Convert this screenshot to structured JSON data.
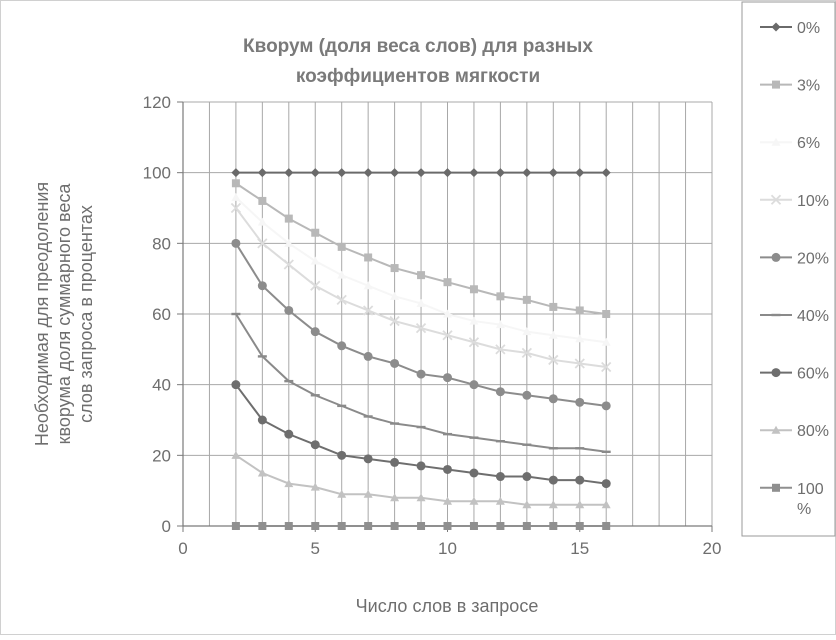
{
  "chart_data": {
    "type": "line",
    "title_lines": [
      "Кворум (доля веса слов) для разных",
      "коэффициентов мягкости"
    ],
    "xlabel": "Число слов в запросе",
    "ylabel_lines": [
      "Необходимая для преодоления",
      "кворума доля суммарного веса",
      "слов запроса в процентах"
    ],
    "xlim": [
      0,
      20
    ],
    "ylim": [
      0,
      120
    ],
    "x_ticks": [
      "0",
      "5",
      "10",
      "15",
      "20"
    ],
    "y_ticks": [
      "0",
      "20",
      "40",
      "60",
      "80",
      "100",
      "120"
    ],
    "grid": true,
    "legend_position": "right",
    "x": [
      2,
      3,
      4,
      5,
      6,
      7,
      8,
      9,
      10,
      11,
      12,
      13,
      14,
      15,
      16
    ],
    "series": [
      {
        "name": "0%",
        "marker": "diamond",
        "color": "#6a6a6a",
        "values": [
          100,
          100,
          100,
          100,
          100,
          100,
          100,
          100,
          100,
          100,
          100,
          100,
          100,
          100,
          100
        ]
      },
      {
        "name": "3%",
        "marker": "square",
        "color": "#b8b8b8",
        "values": [
          97,
          92,
          87,
          83,
          79,
          76,
          73,
          71,
          69,
          67,
          65,
          64,
          62,
          61,
          60
        ]
      },
      {
        "name": "6%",
        "marker": "triangle",
        "color": "#f6f6f6",
        "values": [
          93,
          86,
          80,
          75,
          71,
          68,
          65,
          63,
          60,
          58,
          57,
          55,
          54,
          53,
          52
        ]
      },
      {
        "name": "10%",
        "marker": "x",
        "color": "#dcdcdc",
        "values": [
          90,
          80,
          74,
          68,
          64,
          61,
          58,
          56,
          54,
          52,
          50,
          49,
          47,
          46,
          45
        ]
      },
      {
        "name": "20%",
        "marker": "circle",
        "color": "#8c8c8c",
        "values": [
          80,
          68,
          61,
          55,
          51,
          48,
          46,
          43,
          42,
          40,
          38,
          37,
          36,
          35,
          34
        ]
      },
      {
        "name": "40%",
        "marker": "dash",
        "color": "#8a8a8a",
        "values": [
          60,
          48,
          41,
          37,
          34,
          31,
          29,
          28,
          26,
          25,
          24,
          23,
          22,
          22,
          21
        ]
      },
      {
        "name": "60%",
        "marker": "circle",
        "color": "#6e6e6e",
        "values": [
          40,
          30,
          26,
          23,
          20,
          19,
          18,
          17,
          16,
          15,
          14,
          14,
          13,
          13,
          12
        ]
      },
      {
        "name": "80%",
        "marker": "triangle",
        "color": "#c2c2c2",
        "values": [
          20,
          15,
          12,
          11,
          9,
          9,
          8,
          8,
          7,
          7,
          7,
          6,
          6,
          6,
          6
        ]
      },
      {
        "name": "100%",
        "legend_lines": [
          "100",
          "%"
        ],
        "marker": "square",
        "color": "#8f8f8f",
        "values": [
          0,
          0,
          0,
          0,
          0,
          0,
          0,
          0,
          0,
          0,
          0,
          0,
          0,
          0,
          0
        ]
      }
    ]
  }
}
